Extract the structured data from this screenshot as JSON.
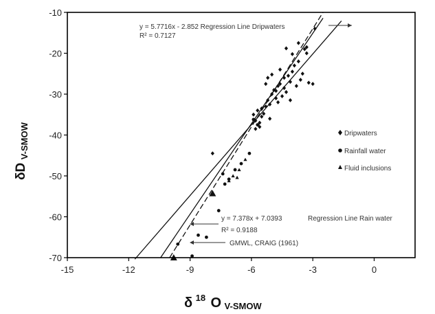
{
  "chart_data": {
    "type": "scatter",
    "title": "",
    "xlabel_main": "δ",
    "xlabel_sup": "18",
    "xlabel_rest": "O",
    "xlabel_sub": "V-SMOW",
    "ylabel_main": "δD",
    "ylabel_sub": "V-SMOW",
    "xlim": [
      -15,
      2
    ],
    "ylim": [
      -70,
      -10
    ],
    "xticks": [
      {
        "value": -15,
        "label": "-15"
      },
      {
        "value": -12,
        "label": "-12"
      },
      {
        "value": -9,
        "label": "-9"
      },
      {
        "value": -6,
        "label": "-6"
      },
      {
        "value": -3,
        "label": "-3"
      },
      {
        "value": 0,
        "label": "0"
      }
    ],
    "yticks": [
      {
        "value": -10,
        "label": "-10"
      },
      {
        "value": -20,
        "label": "-20"
      },
      {
        "value": -30,
        "label": "-30"
      },
      {
        "value": -40,
        "label": "-40"
      },
      {
        "value": -50,
        "label": "-50"
      },
      {
        "value": -60,
        "label": "-60"
      },
      {
        "value": -70,
        "label": "-70"
      }
    ],
    "grid": false,
    "legend_position": "right",
    "series": [
      {
        "name": "Dripwaters",
        "marker": "diamond",
        "points": [
          [
            -5.9,
            -35.0
          ],
          [
            -5.8,
            -36.5
          ],
          [
            -5.7,
            -34.0
          ],
          [
            -5.6,
            -37.0
          ],
          [
            -5.5,
            -35.5
          ],
          [
            -5.4,
            -34.8
          ],
          [
            -5.3,
            -33.0
          ],
          [
            -5.2,
            -31.5
          ],
          [
            -5.1,
            -32.5
          ],
          [
            -5.0,
            -30.0
          ],
          [
            -4.9,
            -29.0
          ],
          [
            -4.8,
            -31.0
          ],
          [
            -4.7,
            -28.0
          ],
          [
            -4.6,
            -27.5
          ],
          [
            -4.5,
            -30.5
          ],
          [
            -4.4,
            -26.0
          ],
          [
            -4.3,
            -29.5
          ],
          [
            -4.2,
            -25.5
          ],
          [
            -4.1,
            -27.0
          ],
          [
            -4.0,
            -24.5
          ],
          [
            -3.9,
            -23.0
          ],
          [
            -3.8,
            -28.0
          ],
          [
            -3.7,
            -22.0
          ],
          [
            -3.6,
            -26.5
          ],
          [
            -3.5,
            -25.0
          ],
          [
            -3.4,
            -19.0
          ],
          [
            -3.3,
            -20.0
          ],
          [
            -3.2,
            -27.2
          ],
          [
            -3.0,
            -27.5
          ],
          [
            -2.9,
            -14.0
          ],
          [
            -4.3,
            -18.8
          ],
          [
            -4.0,
            -20.2
          ],
          [
            -5.0,
            -25.2
          ],
          [
            -5.2,
            -26.0
          ],
          [
            -4.7,
            -32.0
          ],
          [
            -4.6,
            -24.0
          ],
          [
            -5.6,
            -38.0
          ],
          [
            -5.8,
            -38.5
          ],
          [
            -5.5,
            -33.5
          ],
          [
            -4.4,
            -28.5
          ],
          [
            -3.7,
            -17.5
          ],
          [
            -3.3,
            -18.5
          ],
          [
            -5.3,
            -27.5
          ],
          [
            -4.8,
            -29.2
          ],
          [
            -4.1,
            -31.5
          ],
          [
            -5.1,
            -36.0
          ],
          [
            -7.9,
            -44.5
          ]
        ]
      },
      {
        "name": "Rainfall water",
        "marker": "circle",
        "points": [
          [
            -7.6,
            -58.5
          ],
          [
            -8.2,
            -65.0
          ],
          [
            -8.9,
            -69.6
          ],
          [
            -9.6,
            -66.7
          ],
          [
            -8.6,
            -64.5
          ],
          [
            -7.4,
            -49.5
          ],
          [
            -7.1,
            -50.8
          ],
          [
            -6.8,
            -48.5
          ],
          [
            -6.5,
            -47.0
          ],
          [
            -6.1,
            -44.5
          ],
          [
            -5.9,
            -36.2
          ],
          [
            -5.7,
            -37.5
          ],
          [
            -7.3,
            -52.0
          ]
        ]
      },
      {
        "name": "Fluid inclusions",
        "marker": "triangle",
        "points": [
          [
            -7.9,
            -54.3
          ],
          [
            -9.8,
            -70.0
          ],
          [
            -7.1,
            -51.2
          ],
          [
            -6.9,
            -50.0
          ],
          [
            -6.6,
            -48.5
          ],
          [
            -6.3,
            -46.0
          ],
          [
            -6.7,
            -50.4
          ]
        ]
      }
    ],
    "lines": [
      {
        "name": "regression_dripwaters",
        "slope": 5.7716,
        "intercept": -2.852,
        "x_range": [
          -11.7,
          -1.6
        ],
        "dash": "solid"
      },
      {
        "name": "regression_rain",
        "slope": 7.378,
        "intercept": 7.0393,
        "x_range": [
          -10.45,
          -2.5
        ],
        "dash": "solid"
      },
      {
        "name": "gmwl",
        "slope": 8,
        "intercept": 10,
        "x_range": [
          -10.0,
          -2.5
        ],
        "dash": "dashed"
      }
    ],
    "annotations": [
      {
        "id": "drip_eq",
        "text": "y = 5.7716x - 2.852  Regression Line Dripwaters"
      },
      {
        "id": "drip_r2",
        "text": "R² = 0.7127"
      },
      {
        "id": "rain_eq",
        "text": "y = 7.378x + 7.0393"
      },
      {
        "id": "rain_label",
        "text": "Regression Line Rain water"
      },
      {
        "id": "rain_r2",
        "text": "R² = 0.9188"
      },
      {
        "id": "gmwl_label",
        "text": "GMWL, CRAIG (1961)"
      }
    ]
  }
}
